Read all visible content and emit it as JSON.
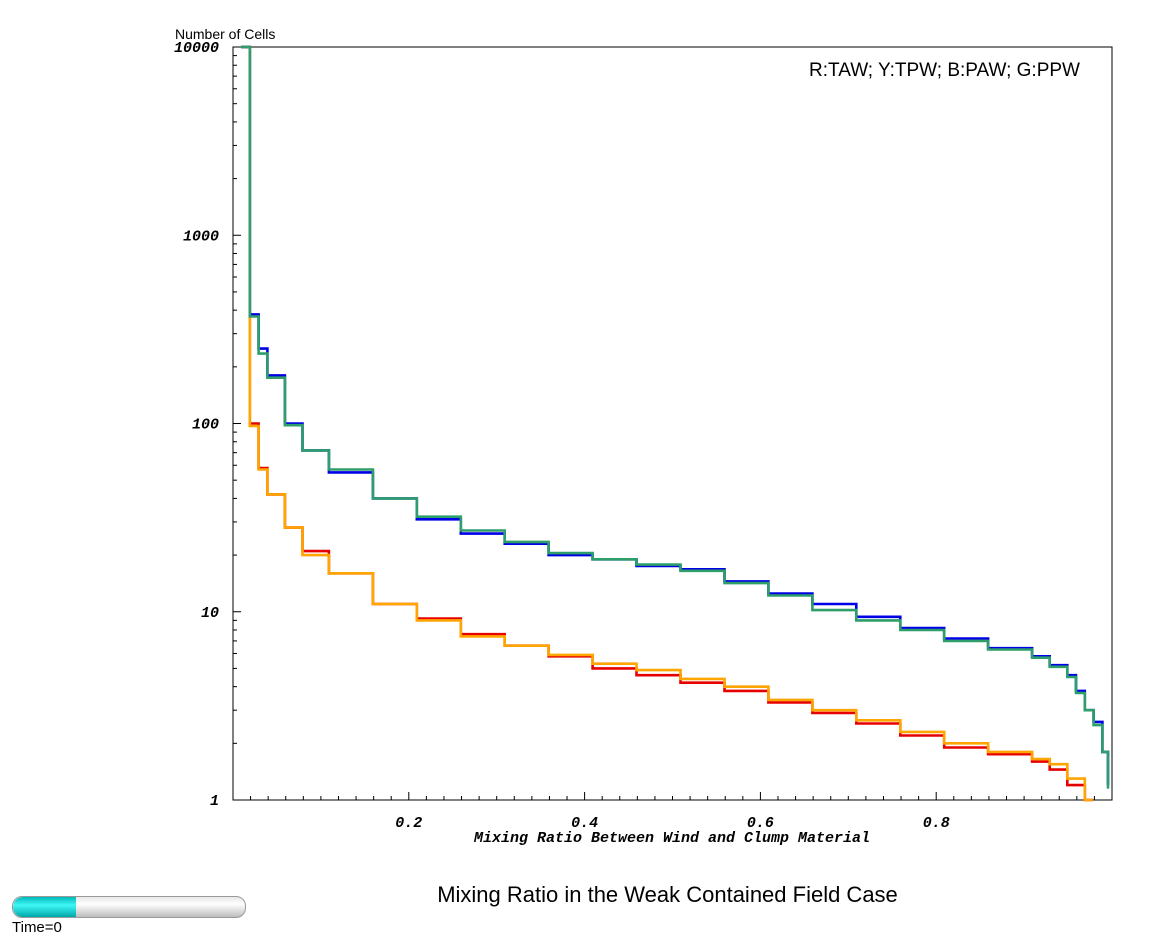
{
  "chart_data": {
    "type": "line",
    "title": "Mixing Ratio in the Weak Contained Field Case",
    "xlabel": "Mixing Ratio Between Wind and Clump Material",
    "ylabel": "Number of Cells",
    "annotation": "R:TAW; Y:TPW; B:PAW; G:PPW",
    "xlim": [
      0,
      1
    ],
    "ylim": [
      1,
      10000
    ],
    "y_scale": "log",
    "grid": false,
    "x_ticks": [
      0.2,
      0.4,
      0.6,
      0.8
    ],
    "x_tick_labels": [
      "0.2",
      "0.4",
      "0.6",
      "0.8"
    ],
    "y_ticks": [
      1,
      10,
      100,
      1000,
      10000
    ],
    "y_tick_labels": [
      "1",
      "10",
      "100",
      "1000",
      "10000"
    ],
    "series": [
      {
        "color": "#e60000",
        "x": [
          0.0,
          0.01,
          0.02,
          0.03,
          0.05,
          0.07,
          0.1,
          0.15,
          0.2,
          0.25,
          0.3,
          0.35,
          0.4,
          0.45,
          0.5,
          0.55,
          0.6,
          0.65,
          0.7,
          0.75,
          0.8,
          0.85,
          0.9,
          0.92,
          0.94,
          0.96
        ],
        "y": [
          10000,
          100,
          58,
          42,
          28,
          21,
          16,
          11,
          9.2,
          7.6,
          6.6,
          5.8,
          5.0,
          4.6,
          4.2,
          3.8,
          3.3,
          2.9,
          2.55,
          2.2,
          1.9,
          1.75,
          1.6,
          1.45,
          1.2,
          1.0
        ]
      },
      {
        "color": "#ffa500",
        "x": [
          0.0,
          0.01,
          0.02,
          0.03,
          0.05,
          0.07,
          0.1,
          0.15,
          0.2,
          0.25,
          0.3,
          0.35,
          0.4,
          0.45,
          0.5,
          0.55,
          0.6,
          0.65,
          0.7,
          0.75,
          0.8,
          0.85,
          0.9,
          0.92,
          0.94,
          0.96
        ],
        "y": [
          10000,
          97,
          57,
          42,
          28,
          20,
          16,
          11,
          9.0,
          7.4,
          6.6,
          5.9,
          5.3,
          4.9,
          4.4,
          4.0,
          3.4,
          3.0,
          2.65,
          2.3,
          2.0,
          1.8,
          1.65,
          1.55,
          1.3,
          1.0
        ]
      },
      {
        "color": "#0000e6",
        "x": [
          0.0,
          0.01,
          0.02,
          0.03,
          0.05,
          0.07,
          0.1,
          0.15,
          0.2,
          0.25,
          0.3,
          0.35,
          0.4,
          0.45,
          0.5,
          0.55,
          0.6,
          0.65,
          0.7,
          0.75,
          0.8,
          0.85,
          0.9,
          0.92,
          0.94,
          0.95,
          0.96,
          0.97,
          0.98,
          0.99
        ],
        "y": [
          10000,
          380,
          250,
          180,
          100,
          72,
          55,
          40,
          31,
          26,
          23,
          20,
          19,
          17.5,
          16.8,
          14.5,
          12.5,
          11,
          9.4,
          8.2,
          7.2,
          6.4,
          5.8,
          5.2,
          4.6,
          3.8,
          3.0,
          2.6,
          1.8,
          1.2
        ]
      },
      {
        "color": "#2e9e6a",
        "x": [
          0.0,
          0.01,
          0.02,
          0.03,
          0.05,
          0.07,
          0.1,
          0.15,
          0.2,
          0.25,
          0.3,
          0.35,
          0.4,
          0.45,
          0.5,
          0.55,
          0.6,
          0.65,
          0.7,
          0.75,
          0.8,
          0.85,
          0.9,
          0.92,
          0.94,
          0.95,
          0.96,
          0.97,
          0.98,
          0.99
        ],
        "y": [
          10000,
          370,
          235,
          175,
          98,
          72,
          57,
          40,
          32,
          27,
          23.5,
          20.5,
          19,
          17.8,
          16.5,
          14.2,
          12.2,
          10.2,
          9.0,
          8.0,
          7.0,
          6.3,
          5.7,
          5.1,
          4.5,
          3.7,
          3.0,
          2.5,
          1.8,
          1.15
        ]
      }
    ]
  },
  "time_slider": {
    "label": "Time=0",
    "fraction": 0.27
  }
}
